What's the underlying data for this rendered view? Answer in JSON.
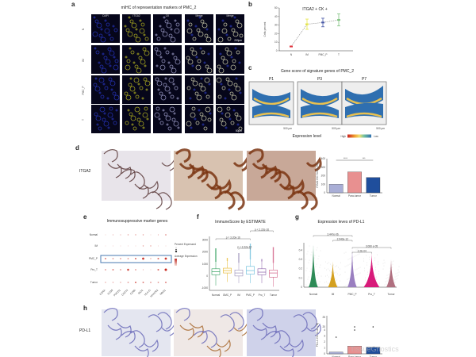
{
  "panel_letters": [
    "a",
    "b",
    "c",
    "d",
    "e",
    "f",
    "g",
    "h"
  ],
  "panel_a": {
    "title": "mIHC of representation markers of PMC_2",
    "columns": [
      "DAPI",
      "ITGA2",
      "CK",
      "Merge",
      "Merge"
    ],
    "rows": [
      "N",
      "IM",
      "PMC_P",
      "T"
    ],
    "scale_bars": [
      "200μm",
      "50μm"
    ]
  },
  "chart_data": [
    {
      "panel": "b",
      "type": "line",
      "title": "ITGA2 + CK +",
      "ylabel": "Cells percent",
      "categories": [
        "N",
        "IM",
        "PMC_P",
        "T"
      ],
      "values": [
        5,
        31,
        33,
        36
      ],
      "errors": [
        0.5,
        6,
        5,
        7
      ],
      "colors": [
        "#e0303a",
        "#e6e64a",
        "#4a5aa8",
        "#7fc27f"
      ],
      "ylim": [
        0,
        50
      ],
      "yticks": [
        0,
        10,
        20,
        30,
        40,
        50
      ]
    },
    {
      "panel": "d",
      "type": "bar",
      "ylabel": "ITGA2 IHC Score (%)",
      "categories": [
        "Normal",
        "Para-tumor",
        "Tumor"
      ],
      "values": [
        100,
        245,
        180
      ],
      "colors": [
        "#a9aed6",
        "#e89090",
        "#1f4e9c"
      ],
      "ylim": [
        0,
        400
      ],
      "yticks": [
        0,
        100,
        200,
        300,
        400
      ],
      "significance": [
        "****",
        "***"
      ]
    },
    {
      "panel": "e",
      "type": "scatter",
      "title": "Immunosuppressive marker genes",
      "rows": [
        "Normal",
        "IM",
        "PMC_P",
        "Pro_T",
        "Tumor"
      ],
      "genes": [
        "IL2RA",
        "CD28",
        "PDCD1",
        "CD274",
        "CD80",
        "IDO1",
        "HLA-G",
        "HAVCR2",
        "NRG1"
      ],
      "values": [
        [
          0.1,
          0.2,
          0.2,
          0.3,
          0.3,
          0.3,
          0.1,
          0.2,
          0.4
        ],
        [
          0.05,
          0.1,
          0.1,
          0.1,
          0.1,
          0.3,
          0.3,
          0.1,
          0.1
        ],
        [
          0.5,
          0.4,
          0.4,
          0.4,
          0.6,
          0.9,
          0.3,
          0.6,
          0.9
        ],
        [
          0.4,
          0.5,
          0.4,
          0.8,
          0.4,
          0.2,
          0.1,
          0.6,
          1.0
        ],
        [
          0.3,
          0.3,
          0.3,
          0.4,
          0.6,
          0.5,
          0.4,
          0.4,
          0.5
        ]
      ],
      "highlight_row": "PMC_P",
      "legend": {
        "size_title": "Percent Expressed",
        "color_title": "Average Expression"
      }
    },
    {
      "panel": "f",
      "type": "box",
      "title": "ImmuneScore by ESTIMATE",
      "categories": [
        "Normal",
        "GMC_P",
        "IM",
        "PMC_P",
        "Pro_T",
        "Tumor"
      ],
      "medians": [
        350,
        450,
        250,
        450,
        320,
        250
      ],
      "q1": [
        100,
        250,
        0,
        150,
        100,
        -100
      ],
      "q3": [
        600,
        650,
        500,
        800,
        600,
        500
      ],
      "wmin": [
        -800,
        -500,
        -600,
        -600,
        -600,
        -900
      ],
      "wmax": [
        2300,
        1500,
        1900,
        2700,
        1400,
        2400
      ],
      "colors": [
        "#2e9e5b",
        "#e6b422",
        "#9a8fb8",
        "#5fb8d8",
        "#8a5fa8",
        "#d05a80"
      ],
      "ylim": [
        -1200,
        3300
      ],
      "yticks": [
        -1000,
        0,
        1000,
        2000,
        3000
      ],
      "comparisons": [
        {
          "from": 0,
          "to": 3,
          "label": "p = 3.20e-16"
        },
        {
          "from": 2,
          "to": 3,
          "label": "p < 2.22e-16"
        },
        {
          "from": 3,
          "to": 5,
          "label": "p < 2.22e-16"
        }
      ]
    },
    {
      "panel": "g",
      "type": "violin",
      "title": "Expression leves of PD-L1",
      "categories": [
        "Normal",
        "IM",
        "PMC_P",
        "Pro_T",
        "Tumor"
      ],
      "max": [
        0.46,
        0.28,
        0.42,
        0.37,
        0.3
      ],
      "colors": [
        "#2e8b57",
        "#d4a020",
        "#9a7fc0",
        "#d81b7a",
        "#b07080"
      ],
      "ylim": [
        0,
        0.48
      ],
      "yticks": [
        0.0,
        0.1,
        0.2,
        0.3,
        0.4
      ],
      "comparisons": [
        {
          "from": 0,
          "to": 2,
          "label": "3.447e-06"
        },
        {
          "from": 1,
          "to": 2,
          "label": "2.940e-12"
        },
        {
          "from": 2,
          "to": 4,
          "label": "3.080 e-05"
        },
        {
          "from": 2,
          "to": 3,
          "label": "2.2E-04"
        }
      ]
    },
    {
      "panel": "h",
      "type": "bar",
      "ylabel": "PD-L1 IHC Score (%)",
      "categories": [
        "Normal",
        "Para-tumor",
        "Tumor"
      ],
      "values": [
        0.3,
        1.3,
        1.1
      ],
      "colors": [
        "#a9aed6",
        "#e89090",
        "#1f4e9c"
      ],
      "yticks": [
        0,
        1,
        2,
        3,
        4,
        20,
        25
      ],
      "outliers": [
        [
          2.8
        ],
        [
          4,
          20
        ],
        [
          20
        ]
      ]
    }
  ],
  "panel_c": {
    "title": "Gene score of signature genes of PMC_2",
    "samples": [
      "P1",
      "P3",
      "P7"
    ],
    "legend_label": "Expression level",
    "high": "High",
    "low": "Low",
    "scale": "500 μm"
  },
  "panel_d": {
    "row_label": "ITGA2"
  },
  "panel_h": {
    "row_label": "PD-L1",
    "watermark": "TissueGnostics"
  }
}
